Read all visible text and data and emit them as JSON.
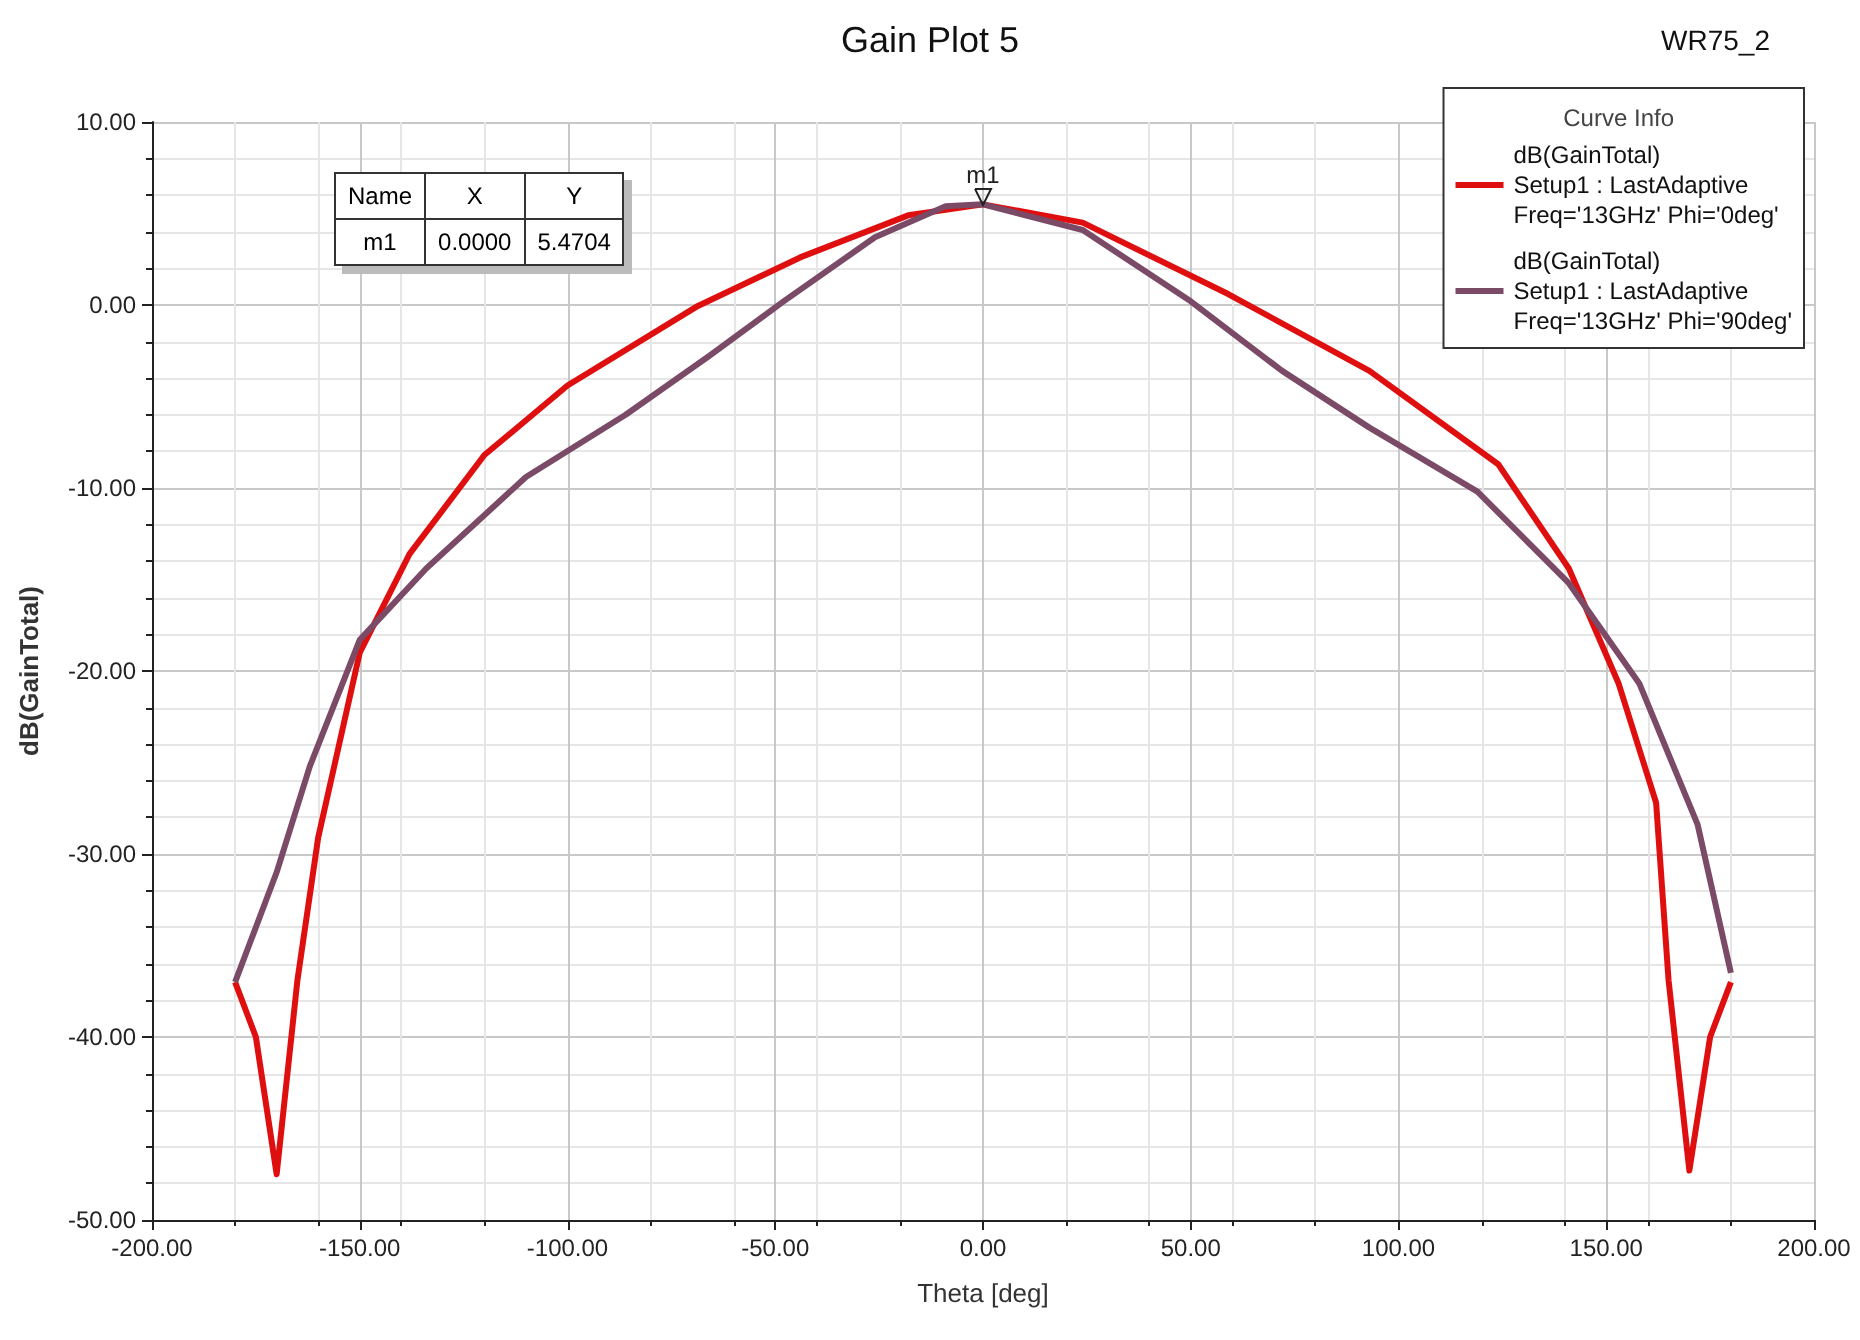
{
  "chart_data": {
    "type": "line",
    "title": "Gain Plot 5",
    "subtitle": "WR75_2",
    "xlabel": "Theta [deg]",
    "ylabel": "dB(GainTotal)",
    "legend_title": "Curve Info",
    "xlim": [
      -200,
      200
    ],
    "xticks": [
      {
        "value": -200,
        "label": "-200.00"
      },
      {
        "value": -150,
        "label": "-150.00"
      },
      {
        "value": -100,
        "label": "-100.00"
      },
      {
        "value": -50,
        "label": "-50.00"
      },
      {
        "value": 0,
        "label": "0.00"
      },
      {
        "value": 50,
        "label": "50.00"
      },
      {
        "value": 100,
        "label": "100.00"
      },
      {
        "value": 150,
        "label": "150.00"
      },
      {
        "value": 200,
        "label": "200.00"
      }
    ],
    "ylim": [
      -50,
      10
    ],
    "yticks": [
      {
        "value": -50,
        "label": "-50.00"
      },
      {
        "value": -40,
        "label": "-40.00"
      },
      {
        "value": -30,
        "label": "-30.00"
      },
      {
        "value": -20,
        "label": "-20.00"
      },
      {
        "value": -10,
        "label": "-10.00"
      },
      {
        "value": 0,
        "label": "0.00"
      },
      {
        "value": 10,
        "label": "10.00"
      }
    ],
    "grid": true,
    "legend": "top right",
    "marker": "none",
    "line_style": "solid",
    "annotations": [
      {
        "text": "m1",
        "x": 0,
        "y": 5.4704
      },
      "Name\tX\tY",
      "m1\t0.0000\t5.4704"
    ],
    "series": [
      {
        "name": "dB(GainTotal)\nSetup1 : LastAdaptive\nFreq='13GHz' Phi='0deg'",
        "color": "#e00f0f",
        "x": [
          -180,
          -175,
          -170,
          -165,
          -160,
          -150,
          -138,
          -120,
          -100,
          -69,
          -44,
          -18,
          0,
          24,
          59,
          93,
          124,
          141,
          153,
          162,
          165,
          170,
          175,
          180
        ],
        "values": [
          -37,
          -40,
          -47.5,
          -36.9,
          -29.1,
          -19,
          -13.6,
          -8.2,
          -4.4,
          -0.1,
          2.6,
          4.9,
          5.5,
          4.5,
          0.6,
          -3.6,
          -8.7,
          -14.4,
          -20.7,
          -27.2,
          -36.9,
          -47.3,
          -40,
          -37
        ]
      },
      {
        "name": "dB(GainTotal)\nSetup1 : LastAdaptive\nFreq='13GHz' Phi='90deg'",
        "color": "#7b4a66",
        "x": [
          -180,
          -170,
          -162,
          -150,
          -134,
          -110,
          -86,
          -66,
          -48,
          -26,
          -9,
          0,
          24,
          50,
          72,
          93,
          119,
          141,
          158,
          172,
          180
        ],
        "values": [
          -37,
          -31,
          -25.2,
          -18.3,
          -14.4,
          -9.4,
          -6,
          -2.8,
          0.2,
          3.7,
          5.4,
          5.5,
          4.1,
          0.2,
          -3.6,
          -6.7,
          -10.2,
          -15.2,
          -20.7,
          -28.4,
          -36.5
        ]
      }
    ]
  }
}
